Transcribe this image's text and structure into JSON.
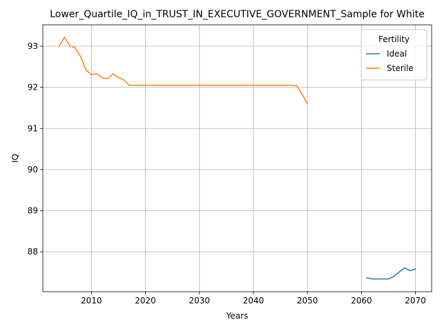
{
  "chart_data": {
    "type": "line",
    "title": "Lower_Quartile_IQ_in_TRUST_IN_EXECUTIVE_GOVERNMENT_Sample for White",
    "xlabel": "Years",
    "ylabel": "IQ",
    "xlim": [
      2001,
      2073
    ],
    "ylim": [
      87.03,
      93.52
    ],
    "xticks": [
      2010,
      2020,
      2030,
      2040,
      2050,
      2060,
      2070
    ],
    "yticks": [
      88,
      89,
      90,
      91,
      92,
      93
    ],
    "grid": true,
    "legend": {
      "title": "Fertility",
      "placement": "top-right"
    },
    "series": [
      {
        "name": "Ideal",
        "color": "#1f77b4",
        "x": [
          2061,
          2062,
          2063,
          2064,
          2065,
          2066,
          2067,
          2068,
          2069,
          2070
        ],
        "y": [
          87.37,
          87.34,
          87.34,
          87.34,
          87.34,
          87.4,
          87.51,
          87.61,
          87.54,
          87.58
        ]
      },
      {
        "name": "Sterile",
        "color": "#ff7f0e",
        "x": [
          2004,
          2005,
          2006,
          2007,
          2008,
          2009,
          2010,
          2011,
          2012,
          2013,
          2014,
          2015,
          2016,
          2017,
          2018,
          2019,
          2020,
          2025,
          2030,
          2035,
          2040,
          2045,
          2047,
          2048,
          2049,
          2050
        ],
        "y": [
          93.0,
          93.22,
          93.01,
          92.96,
          92.75,
          92.42,
          92.31,
          92.33,
          92.23,
          92.21,
          92.33,
          92.24,
          92.18,
          92.05,
          92.05,
          92.05,
          92.05,
          92.05,
          92.05,
          92.05,
          92.05,
          92.05,
          92.05,
          92.04,
          91.84,
          91.6
        ]
      }
    ]
  }
}
